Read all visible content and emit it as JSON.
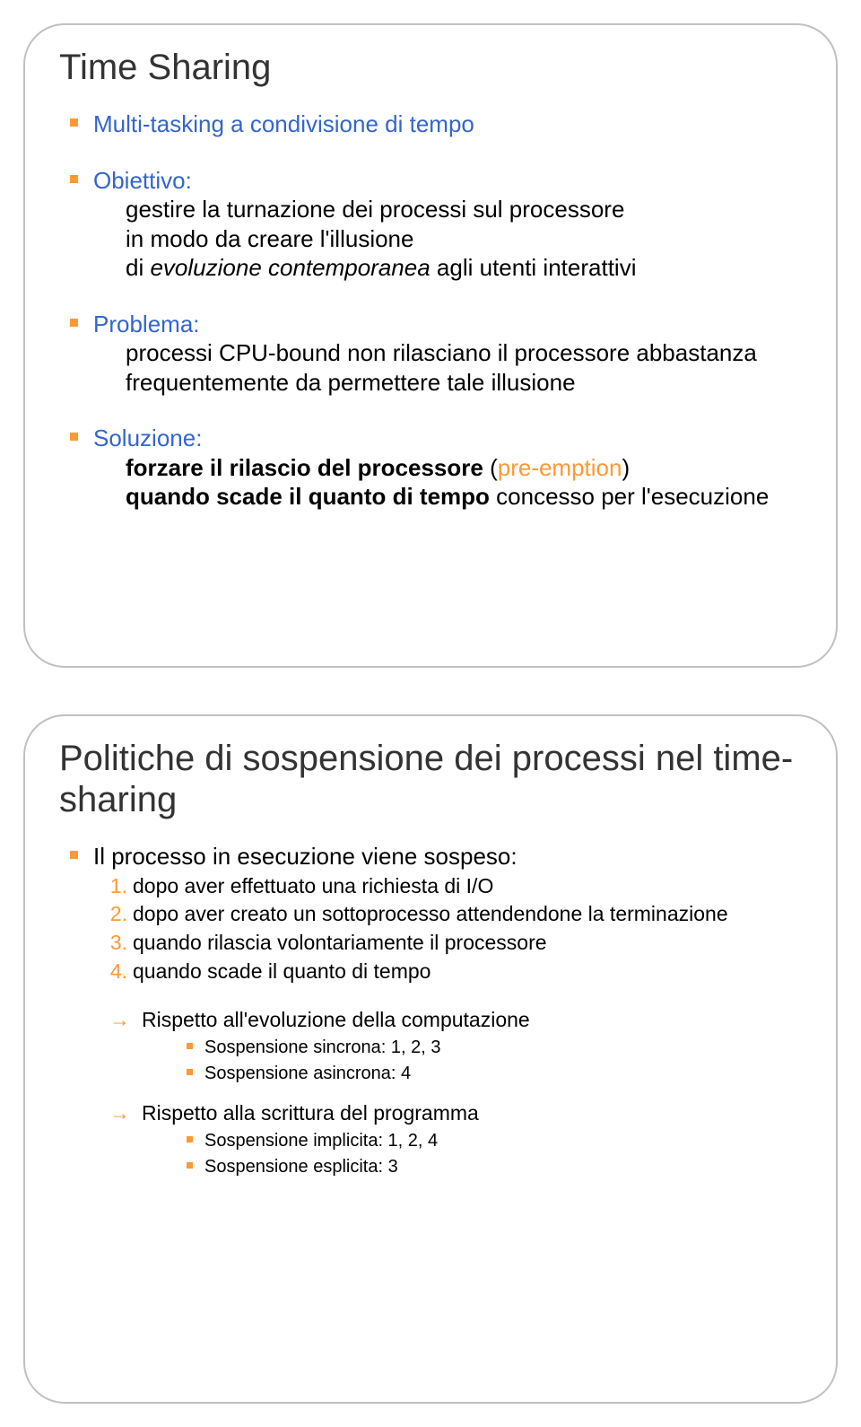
{
  "colors": {
    "bullet": "#ff9933",
    "heading_label": "#3366cc",
    "text": "#000000",
    "title": "#333333",
    "frame_border": "#c0c0c0",
    "background": "#ffffff"
  },
  "typography": {
    "title_fontsize": 40,
    "lvl1_fontsize": 26,
    "lvl2_fontsize": 23,
    "lvl3_fontsize": 20,
    "font_family": "Arial"
  },
  "slide1": {
    "title": "Time Sharing",
    "b1": "Multi-tasking a condivisione di tempo",
    "b2_label": "Obiettivo:",
    "b2_l1": "gestire la turnazione dei processi sul processore",
    "b2_l2": "in modo da creare l'illusione",
    "b2_l3a": "di ",
    "b2_l3b": "evoluzione contemporanea",
    "b2_l3c": " agli utenti interattivi",
    "b3_label": "Problema:",
    "b3_l1": "processi CPU-bound non rilasciano il processore abbastanza frequentemente da permettere tale illusione",
    "b4_label": "Soluzione:",
    "b4_l1a": "forzare il rilascio del processore",
    "b4_l1b": " (",
    "b4_l1c": "pre-emption",
    "b4_l1d": ")",
    "b4_l2": "quando scade il quanto di tempo",
    "b4_l2b": " concesso per l'esecuzione"
  },
  "slide2": {
    "title": "Politiche di sospensione dei processi nel time-sharing",
    "b1": "Il processo in esecuzione viene sospeso:",
    "n1_num": "1.",
    "n1": "dopo aver effettuato una richiesta di I/O",
    "n2_num": "2.",
    "n2": "dopo aver creato un sottoprocesso attendendone la terminazione",
    "n3_num": "3.",
    "n3": "quando rilascia volontariamente il processore",
    "n4_num": "4.",
    "n4": "quando scade il quanto di tempo",
    "a1_arrow": "→",
    "a1": "Rispetto all'evoluzione della computazione",
    "a1_s1": "Sospensione sincrona: 1, 2, 3",
    "a1_s2": "Sospensione asincrona: 4",
    "a2_arrow": "→",
    "a2": "Rispetto alla scrittura del programma",
    "a2_s1": "Sospensione implicita: 1, 2, 4",
    "a2_s2": "Sospensione esplicita: 3"
  }
}
